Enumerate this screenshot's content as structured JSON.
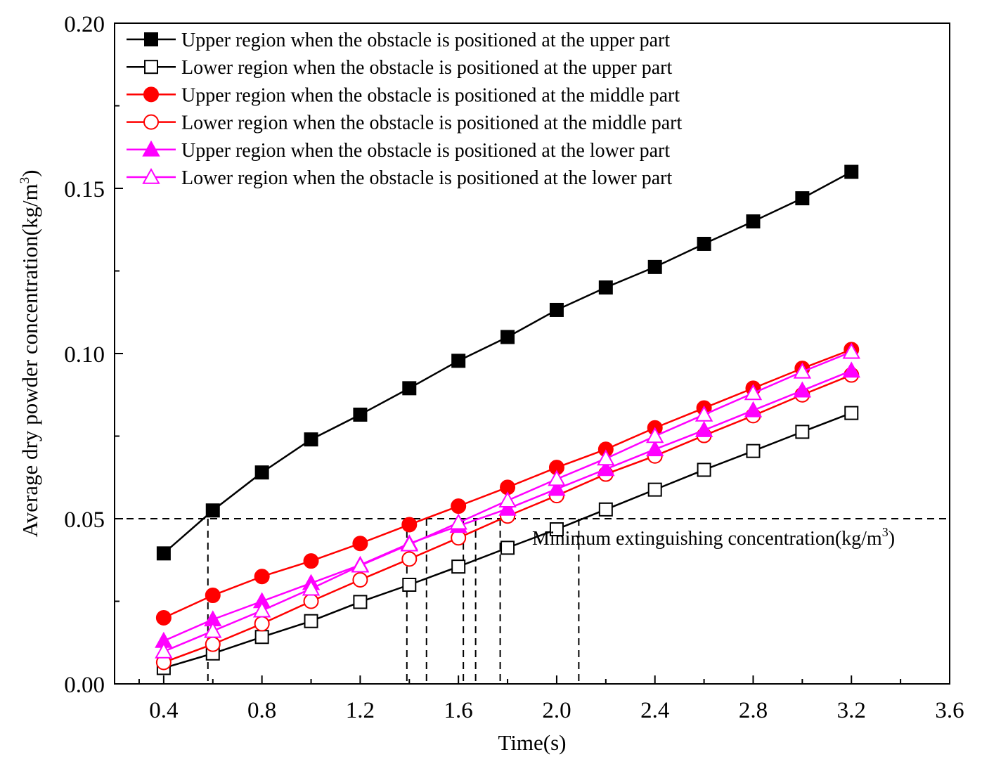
{
  "chart_data": {
    "type": "line",
    "title": "",
    "xlabel": "Time(s)",
    "ylabel": "Average dry powder concentration(kg/m",
    "ylabel_sup": "3",
    "ylabel_end": ")",
    "xlim": [
      0.2,
      3.6
    ],
    "ylim": [
      0.0,
      0.2
    ],
    "xticks": [
      0.4,
      0.8,
      1.2,
      1.6,
      2.0,
      2.4,
      2.8,
      3.2,
      3.6
    ],
    "xtick_labels": [
      "0.4",
      "0.8",
      "1.2",
      "1.6",
      "2.0",
      "2.4",
      "2.8",
      "3.2",
      "3.6"
    ],
    "yticks": [
      0.0,
      0.05,
      0.1,
      0.15,
      0.2
    ],
    "ytick_labels": [
      "0.00",
      "0.05",
      "0.10",
      "0.15",
      "0.20"
    ],
    "x": [
      0.4,
      0.6,
      0.8,
      1.0,
      1.2,
      1.4,
      1.6,
      1.8,
      2.0,
      2.2,
      2.4,
      2.6,
      2.8,
      3.0,
      3.2
    ],
    "series": [
      {
        "name": "Upper region when the obstacle is positioned at the upper part",
        "color": "#000000",
        "marker": "square",
        "filled": true,
        "values": [
          0.0395,
          0.0525,
          0.064,
          0.074,
          0.0815,
          0.0895,
          0.0978,
          0.105,
          0.1132,
          0.12,
          0.1262,
          0.1332,
          0.14,
          0.147,
          0.155
        ]
      },
      {
        "name": "Lower region when the obstacle is positioned at the upper part",
        "color": "#000000",
        "marker": "square",
        "filled": false,
        "values": [
          0.0048,
          0.0092,
          0.0142,
          0.019,
          0.0248,
          0.03,
          0.0355,
          0.0412,
          0.0468,
          0.0528,
          0.0588,
          0.0648,
          0.0705,
          0.0763,
          0.082
        ]
      },
      {
        "name": "Upper region when the obstacle is positioned at the middle part",
        "color": "#ff0000",
        "marker": "circle",
        "filled": true,
        "values": [
          0.02,
          0.0268,
          0.0325,
          0.0372,
          0.0425,
          0.0482,
          0.0538,
          0.0595,
          0.0655,
          0.071,
          0.0775,
          0.0835,
          0.0895,
          0.0955,
          0.1012
        ]
      },
      {
        "name": "Lower region when the obstacle is positioned at the middle part",
        "color": "#ff0000",
        "marker": "circle",
        "filled": false,
        "values": [
          0.0065,
          0.012,
          0.0182,
          0.025,
          0.0315,
          0.0378,
          0.0442,
          0.0508,
          0.057,
          0.0635,
          0.069,
          0.0752,
          0.0812,
          0.0875,
          0.0935
        ]
      },
      {
        "name": "Upper region when the obstacle is positioned at the lower part",
        "color": "#ff00ff",
        "marker": "triangle",
        "filled": true,
        "values": [
          0.013,
          0.0195,
          0.025,
          0.0305,
          0.036,
          0.0425,
          0.0478,
          0.053,
          0.059,
          0.065,
          0.071,
          0.0768,
          0.0828,
          0.0888,
          0.0948
        ]
      },
      {
        "name": "Lower region when the obstacle is positioned at the lower part",
        "color": "#ff00ff",
        "marker": "triangle",
        "filled": false,
        "values": [
          0.0098,
          0.016,
          0.0222,
          0.0288,
          0.0358,
          0.0422,
          0.0488,
          0.0555,
          0.062,
          0.0682,
          0.075,
          0.0815,
          0.088,
          0.0945,
          0.1005
        ]
      }
    ],
    "threshold": {
      "value": 0.05,
      "label": "Minimum extinguishing concentration(kg/m",
      "label_sup": "3",
      "label_end": ")",
      "style": "dashed"
    },
    "crossing_times": [
      0.58,
      1.39,
      1.47,
      1.62,
      1.67,
      1.77,
      2.09
    ],
    "legend_position": "top-left",
    "grid": false
  }
}
